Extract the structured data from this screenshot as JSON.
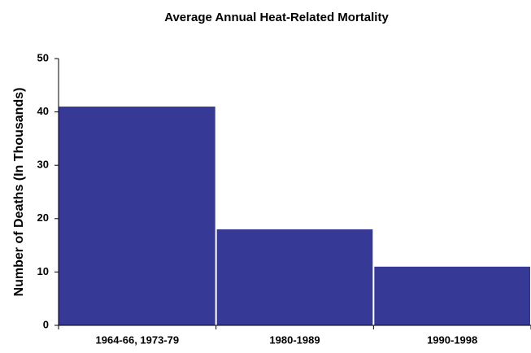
{
  "chart_data": {
    "type": "bar",
    "title": "Average Annual Heat-Related Mortality",
    "y_label": "Number of Deaths (In Thousands)",
    "categories": [
      "1964-66, 1973-79",
      "1980-1989",
      "1990-1998"
    ],
    "values": [
      41,
      18,
      11
    ],
    "color": "#363996",
    "ylim": [
      0,
      50
    ],
    "yticks": [
      0,
      10,
      20,
      30,
      40,
      50
    ],
    "grid": false
  }
}
